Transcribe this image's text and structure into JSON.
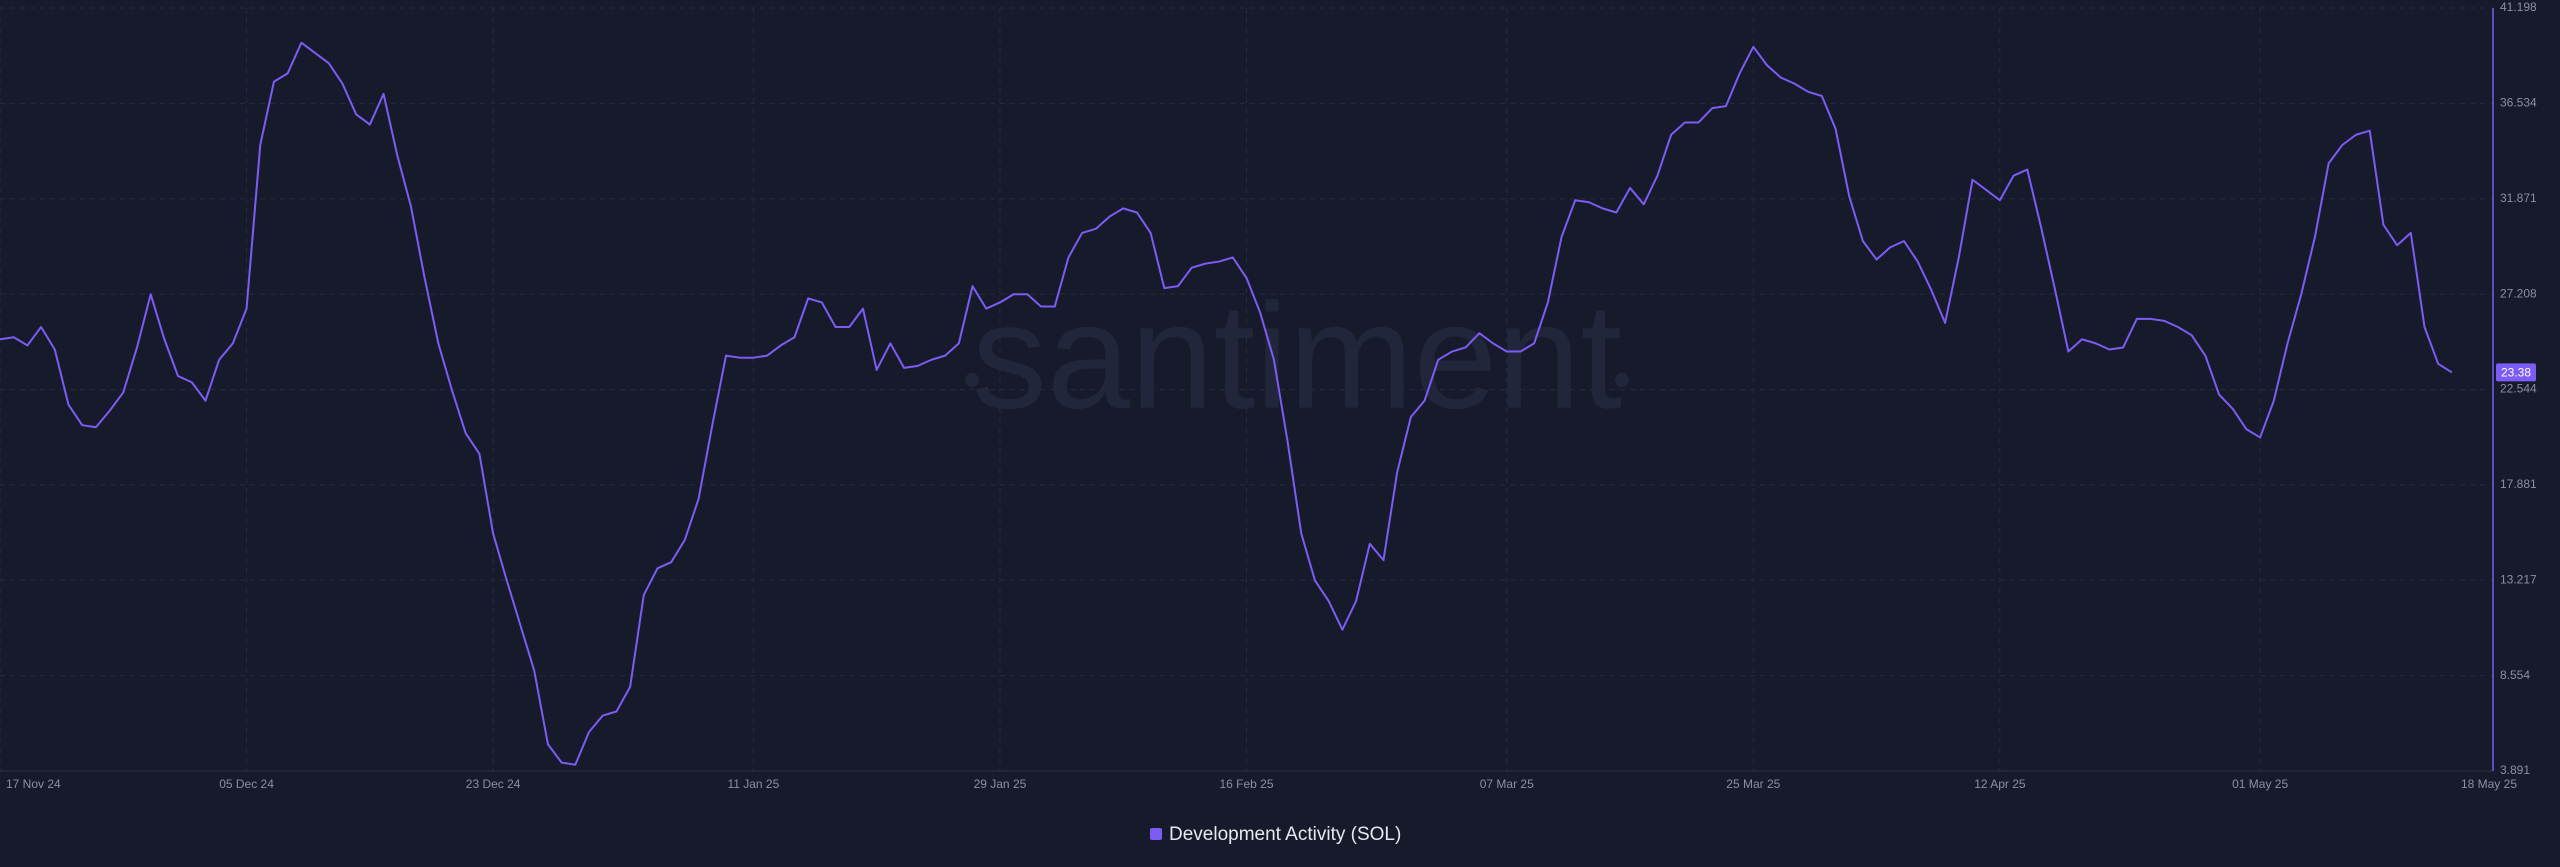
{
  "chart_data": {
    "type": "line",
    "watermark": "santiment",
    "x": [
      "2024-11-17",
      "2024-11-18",
      "2024-11-19",
      "2024-11-20",
      "2024-11-21",
      "2024-11-22",
      "2024-11-23",
      "2024-11-24",
      "2024-11-25",
      "2024-11-26",
      "2024-11-27",
      "2024-11-28",
      "2024-11-29",
      "2024-11-30",
      "2024-12-01",
      "2024-12-02",
      "2024-12-03",
      "2024-12-04",
      "2024-12-05",
      "2024-12-06",
      "2024-12-07",
      "2024-12-08",
      "2024-12-09",
      "2024-12-10",
      "2024-12-11",
      "2024-12-12",
      "2024-12-13",
      "2024-12-14",
      "2024-12-15",
      "2024-12-16",
      "2024-12-17",
      "2024-12-18",
      "2024-12-19",
      "2024-12-20",
      "2024-12-21",
      "2024-12-22",
      "2024-12-23",
      "2024-12-24",
      "2024-12-25",
      "2024-12-26",
      "2024-12-27",
      "2024-12-28",
      "2024-12-29",
      "2024-12-30",
      "2024-12-31",
      "2025-01-01",
      "2025-01-02",
      "2025-01-03",
      "2025-01-04",
      "2025-01-05",
      "2025-01-06",
      "2025-01-07",
      "2025-01-08",
      "2025-01-09",
      "2025-01-10",
      "2025-01-11",
      "2025-01-12",
      "2025-01-13",
      "2025-01-14",
      "2025-01-15",
      "2025-01-16",
      "2025-01-17",
      "2025-01-18",
      "2025-01-19",
      "2025-01-20",
      "2025-01-21",
      "2025-01-22",
      "2025-01-23",
      "2025-01-24",
      "2025-01-25",
      "2025-01-26",
      "2025-01-27",
      "2025-01-28",
      "2025-01-29",
      "2025-01-30",
      "2025-01-31",
      "2025-02-01",
      "2025-02-02",
      "2025-02-03",
      "2025-02-04",
      "2025-02-05",
      "2025-02-06",
      "2025-02-07",
      "2025-02-08",
      "2025-02-09",
      "2025-02-10",
      "2025-02-11",
      "2025-02-12",
      "2025-02-13",
      "2025-02-14",
      "2025-02-15",
      "2025-02-16",
      "2025-02-17",
      "2025-02-18",
      "2025-02-19",
      "2025-02-20",
      "2025-02-21",
      "2025-02-22",
      "2025-02-23",
      "2025-02-24",
      "2025-02-25",
      "2025-02-26",
      "2025-02-27",
      "2025-02-28",
      "2025-03-01",
      "2025-03-02",
      "2025-03-03",
      "2025-03-04",
      "2025-03-05",
      "2025-03-06",
      "2025-03-07",
      "2025-03-08",
      "2025-03-09",
      "2025-03-10",
      "2025-03-11",
      "2025-03-12",
      "2025-03-13",
      "2025-03-14",
      "2025-03-15",
      "2025-03-16",
      "2025-03-17",
      "2025-03-18",
      "2025-03-19",
      "2025-03-20",
      "2025-03-21",
      "2025-03-22",
      "2025-03-23",
      "2025-03-24",
      "2025-03-25",
      "2025-03-26",
      "2025-03-27",
      "2025-03-28",
      "2025-03-29",
      "2025-03-30",
      "2025-03-31",
      "2025-04-01",
      "2025-04-02",
      "2025-04-03",
      "2025-04-04",
      "2025-04-05",
      "2025-04-06",
      "2025-04-07",
      "2025-04-08",
      "2025-04-09",
      "2025-04-10",
      "2025-04-11",
      "2025-04-12",
      "2025-04-13",
      "2025-04-14",
      "2025-04-15",
      "2025-04-16",
      "2025-04-17",
      "2025-04-18",
      "2025-04-19",
      "2025-04-20",
      "2025-04-21",
      "2025-04-22",
      "2025-04-23",
      "2025-04-24",
      "2025-04-25",
      "2025-04-26",
      "2025-04-27",
      "2025-04-28",
      "2025-04-29",
      "2025-04-30",
      "2025-05-01",
      "2025-05-02",
      "2025-05-03",
      "2025-05-04",
      "2025-05-05",
      "2025-05-06",
      "2025-05-07",
      "2025-05-08",
      "2025-05-09",
      "2025-05-10",
      "2025-05-11",
      "2025-05-12",
      "2025-05-13",
      "2025-05-14",
      "2025-05-15"
    ],
    "series": [
      {
        "name": "Development Activity (SOL)",
        "color": "#7b5cf5",
        "values": [
          25.0,
          25.1,
          24.7,
          25.6,
          24.5,
          21.8,
          20.8,
          20.7,
          21.5,
          22.4,
          24.6,
          27.2,
          25.0,
          23.2,
          22.9,
          22.0,
          24.0,
          24.8,
          26.5,
          34.5,
          37.6,
          38.0,
          39.5,
          39.0,
          38.5,
          37.5,
          36.0,
          35.5,
          37.0,
          34.0,
          31.5,
          28.0,
          24.8,
          22.5,
          20.4,
          19.4,
          15.5,
          13.2,
          11.0,
          8.8,
          5.2,
          4.3,
          4.2,
          5.8,
          6.6,
          6.8,
          8.0,
          12.5,
          13.8,
          14.1,
          15.2,
          17.2,
          20.8,
          24.2,
          24.1,
          24.1,
          24.2,
          24.7,
          25.1,
          27.0,
          26.8,
          25.6,
          25.6,
          26.5,
          23.5,
          24.8,
          23.6,
          23.7,
          24.0,
          24.2,
          24.8,
          27.6,
          26.5,
          26.8,
          27.2,
          27.2,
          26.6,
          26.6,
          29.0,
          30.2,
          30.4,
          31.0,
          31.4,
          31.2,
          30.2,
          27.5,
          27.6,
          28.5,
          28.7,
          28.8,
          29.0,
          28.0,
          26.3,
          24.0,
          20.0,
          15.5,
          13.2,
          12.2,
          10.8,
          12.2,
          15.0,
          14.2,
          18.5,
          21.2,
          22.0,
          24.0,
          24.4,
          24.6,
          25.3,
          24.8,
          24.4,
          24.4,
          24.8,
          26.8,
          30.0,
          31.8,
          31.7,
          31.4,
          31.2,
          32.4,
          31.6,
          33.0,
          35.0,
          35.6,
          35.6,
          36.3,
          36.4,
          38.0,
          39.3,
          38.4,
          37.8,
          37.5,
          37.1,
          36.9,
          35.3,
          32.0,
          29.8,
          28.9,
          29.5,
          29.8,
          28.8,
          27.4,
          25.8,
          29.0,
          32.8,
          32.3,
          31.8,
          33.0,
          33.3,
          30.5,
          27.5,
          24.4,
          25.0,
          24.8,
          24.5,
          24.6,
          26.0,
          26.0,
          25.9,
          25.6,
          25.2,
          24.2,
          22.3,
          21.6,
          20.6,
          20.2,
          22.0,
          24.8,
          27.2,
          30.0,
          33.6,
          34.5,
          35.0,
          35.2,
          30.6,
          29.6,
          30.2,
          25.6,
          23.8,
          23.38
        ]
      }
    ],
    "xlim": [
      "2024-11-17",
      "2025-05-18"
    ],
    "xticks": [
      {
        "value": "2024-11-17",
        "label": "17 Nov 24"
      },
      {
        "value": "2024-12-05",
        "label": "05 Dec 24"
      },
      {
        "value": "2024-12-23",
        "label": "23 Dec 24"
      },
      {
        "value": "2025-01-11",
        "label": "11 Jan 25"
      },
      {
        "value": "2025-01-29",
        "label": "29 Jan 25"
      },
      {
        "value": "2025-02-16",
        "label": "16 Feb 25"
      },
      {
        "value": "2025-03-07",
        "label": "07 Mar 25"
      },
      {
        "value": "2025-03-25",
        "label": "25 Mar 25"
      },
      {
        "value": "2025-04-12",
        "label": "12 Apr 25"
      },
      {
        "value": "2025-05-01",
        "label": "01 May 25"
      },
      {
        "value": "2025-05-18",
        "label": "18 May 25"
      }
    ],
    "ylim": [
      3.891,
      41.198
    ],
    "yticks": [
      3.891,
      8.554,
      13.217,
      17.881,
      22.544,
      27.208,
      31.871,
      36.534,
      41.198
    ],
    "grid": true,
    "legend": "bottom"
  }
}
